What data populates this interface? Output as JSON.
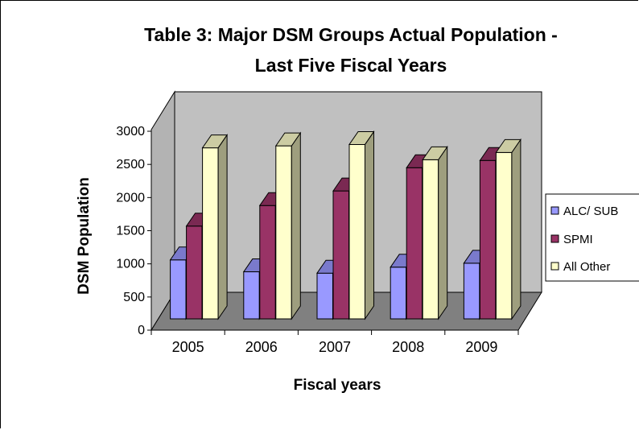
{
  "chart_data": {
    "type": "bar",
    "title_lines": [
      "Table 3:  Major DSM Groups Actual Population -",
      "Last Five Fiscal Years"
    ],
    "xlabel": "Fiscal years",
    "ylabel": "DSM Population",
    "categories": [
      "2005",
      "2006",
      "2007",
      "2008",
      "2009"
    ],
    "yticks": [
      "0",
      "500",
      "1000",
      "1500",
      "2000",
      "2500",
      "3000"
    ],
    "ylim": [
      0,
      3000
    ],
    "series": [
      {
        "name": "ALC/ SUB",
        "values": [
          1060,
          880,
          860,
          950,
          1010
        ],
        "color": "#9999ff"
      },
      {
        "name": "SPMI",
        "values": [
          1570,
          1880,
          2100,
          2450,
          2560
        ],
        "color": "#993366"
      },
      {
        "name": "All Other",
        "values": [
          2750,
          2780,
          2800,
          2570,
          2680
        ],
        "color": "#ffffcc"
      }
    ],
    "legend": "right",
    "grid": false,
    "three_d": true,
    "wall_color": "#c0c0c0",
    "floor_color": "#808080"
  }
}
